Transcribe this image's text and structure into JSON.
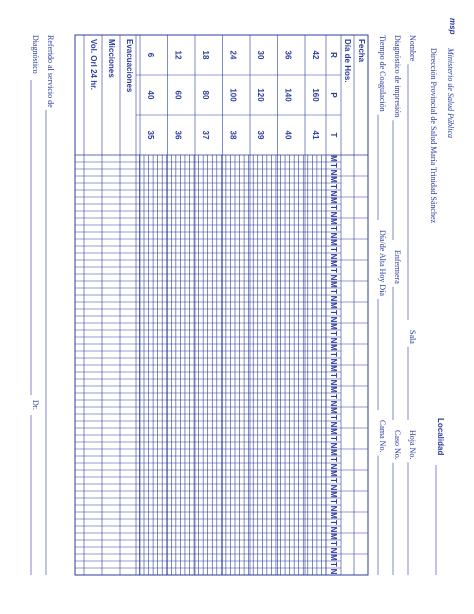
{
  "header": {
    "logo": "msp",
    "title": "Ministerio de Salud Pública",
    "subtitle": "Dirección Provincial de Salud María Trinidad Sánchez",
    "locality": "Localidad"
  },
  "fields": [
    [
      "Nombre",
      "Sala",
      "Hoja No."
    ],
    [
      "Diagnóstico de impresión",
      "Enfermera",
      "Caso No."
    ],
    [
      "Tiempo de Coagulación",
      "Día/de Alta Hoy Día",
      "Cama No."
    ]
  ],
  "table": {
    "date_label": "Fecha",
    "day_label": "Día de Hos.",
    "vital_headers": [
      "R",
      "P",
      "T"
    ],
    "vital_rows": [
      [
        42,
        160,
        41
      ],
      [
        36,
        140,
        40
      ],
      [
        30,
        120,
        39
      ],
      [
        24,
        100,
        38
      ],
      [
        18,
        80,
        37
      ],
      [
        12,
        60,
        36
      ],
      [
        6,
        40,
        35
      ]
    ],
    "output_rows": [
      "Evacuaciones",
      "Micciones",
      "Vol. Orl 24 hr."
    ],
    "shifts": [
      "M",
      "T",
      "N"
    ]
  },
  "footer": {
    "referred": "Referido al servicio de",
    "diagnosis": "Diagnóstico",
    "doctor": "Dr."
  }
}
